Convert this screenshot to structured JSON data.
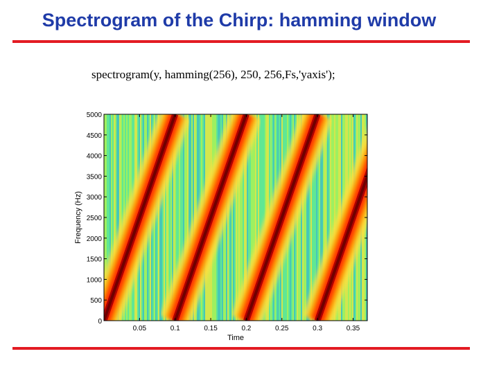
{
  "slide": {
    "title": "Spectrogram of the Chirp: hamming window",
    "code": "spectrogram(y, hamming(256), 250, 256,Fs,'yaxis');"
  },
  "chart_data": {
    "type": "heatmap",
    "title": "",
    "xlabel": "Time",
    "ylabel": "Frequency (Hz)",
    "xlim": [
      0,
      0.37
    ],
    "ylim": [
      0,
      5000
    ],
    "x_ticks": [
      0.05,
      0.1,
      0.15,
      0.2,
      0.25,
      0.3,
      0.35
    ],
    "x_tick_labels": [
      "0.05",
      "0.1",
      "0.15",
      "0.2",
      "0.25",
      "0.3",
      "0.35"
    ],
    "y_ticks": [
      0,
      500,
      1000,
      1500,
      2000,
      2500,
      3000,
      3500,
      4000,
      4500,
      5000
    ],
    "y_tick_labels": [
      "0",
      "500",
      "1000",
      "1500",
      "2000",
      "2500",
      "3000",
      "3500",
      "4000",
      "4500",
      "5000"
    ],
    "colormap": [
      "#00a8ff",
      "#30e0c0",
      "#a0f060",
      "#ffe040",
      "#ff9a00",
      "#ff3000",
      "#b00000",
      "#700000"
    ],
    "chirp": {
      "period": 0.1,
      "f_start": 0,
      "f_end": 5000,
      "sweep_starts": [
        0,
        0.1,
        0.2,
        0.3
      ],
      "sweep_ends": [
        0.1,
        0.2,
        0.3,
        0.4
      ]
    }
  }
}
